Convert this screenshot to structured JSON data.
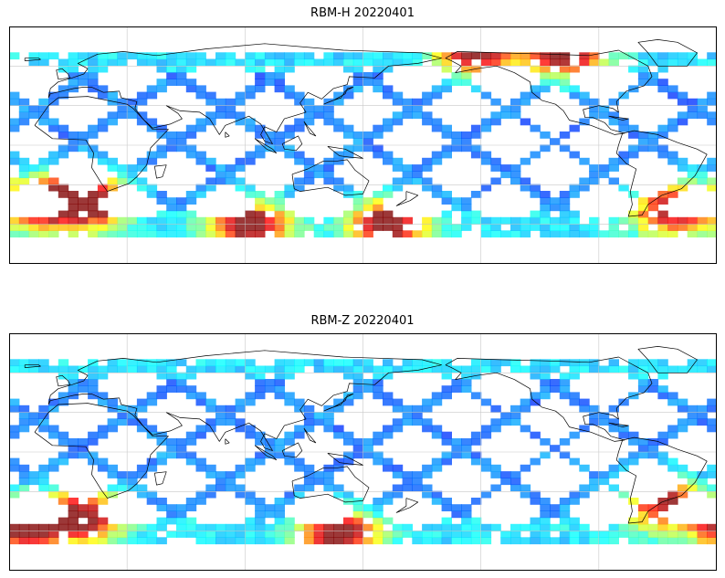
{
  "panels": [
    {
      "title": "RBM-H 20220401",
      "variable": "RBM-H",
      "date": "20220401",
      "hot_zones": [
        {
          "lon": 205,
          "lat": 70
        },
        {
          "lon": 250,
          "lat": 68
        },
        {
          "lon": 10,
          "lat": -45
        },
        {
          "lon": 90,
          "lat": -62
        },
        {
          "lon": 160,
          "lat": -62
        },
        {
          "lon": 305,
          "lat": -50
        },
        {
          "lon": 345,
          "lat": -45
        }
      ]
    },
    {
      "title": "RBM-Z 20220401",
      "variable": "RBM-Z",
      "date": "20220401",
      "hot_zones": [
        {
          "lon": 300,
          "lat": -40
        },
        {
          "lon": 335,
          "lat": -58
        },
        {
          "lon": 5,
          "lat": -50
        },
        {
          "lon": 135,
          "lat": -65
        }
      ]
    }
  ],
  "map": {
    "projection": "PlateCarree",
    "lon_range": [
      -30,
      330
    ],
    "lat_range": [
      -90,
      90
    ],
    "data_lat_range": [
      -70,
      70
    ],
    "gridlines": true,
    "coastlines": true,
    "colormap": "jet"
  }
}
